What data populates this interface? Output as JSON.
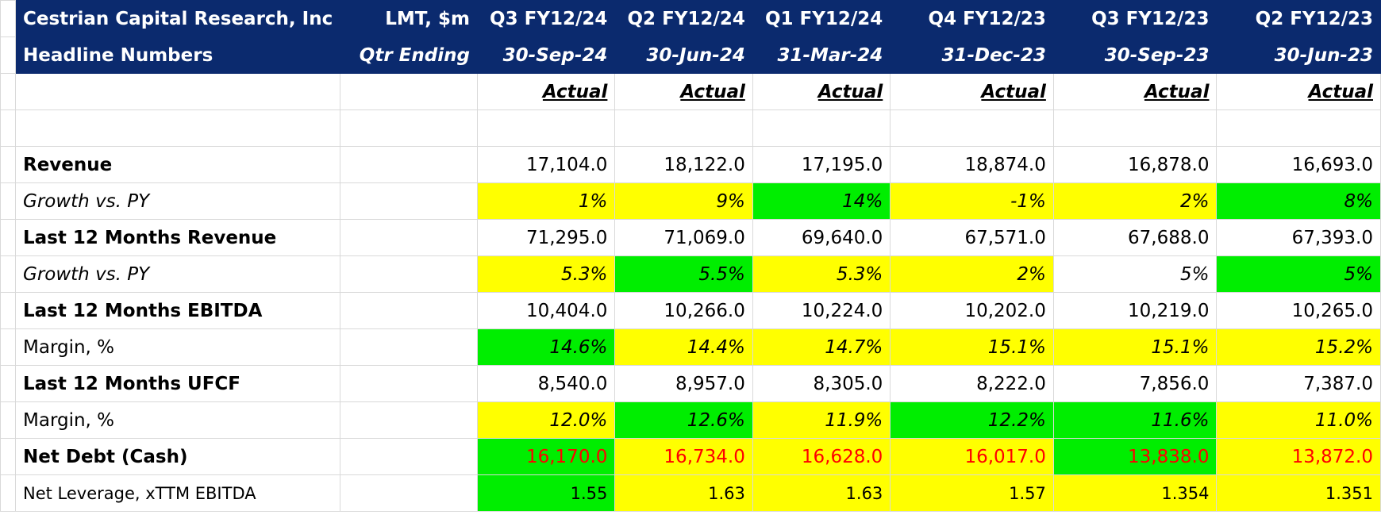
{
  "header": {
    "company": "Cestrian Capital Research, Inc",
    "subtitle": "Headline Numbers",
    "units_label": "LMT, $m",
    "qtr_ending_label": "Qtr Ending",
    "periods": [
      "Q3 FY12/24",
      "Q2 FY12/24",
      "Q1 FY12/24",
      "Q4 FY12/23",
      "Q3 FY12/23",
      "Q2 FY12/23"
    ],
    "dates": [
      "30-Sep-24",
      "30-Jun-24",
      "31-Mar-24",
      "31-Dec-23",
      "30-Sep-23",
      "30-Jun-23"
    ],
    "status": [
      "Actual",
      "Actual",
      "Actual",
      "Actual",
      "Actual",
      "Actual"
    ]
  },
  "rows": {
    "revenue": {
      "label": "Revenue",
      "values": [
        "17,104.0",
        "18,122.0",
        "17,195.0",
        "18,874.0",
        "16,878.0",
        "16,693.0"
      ]
    },
    "revenue_growth": {
      "label": "Growth vs. PY",
      "values": [
        "1%",
        "9%",
        "14%",
        "-1%",
        "2%",
        "8%"
      ],
      "fills": [
        "yellow",
        "yellow",
        "green",
        "yellow",
        "yellow",
        "green"
      ]
    },
    "ltm_revenue": {
      "label": "Last 12 Months Revenue",
      "values": [
        "71,295.0",
        "71,069.0",
        "69,640.0",
        "67,571.0",
        "67,688.0",
        "67,393.0"
      ]
    },
    "ltm_revenue_growth": {
      "label": "Growth vs. PY",
      "values": [
        "5.3%",
        "5.5%",
        "5.3%",
        "2%",
        "5%",
        "5%"
      ],
      "fills": [
        "yellow",
        "green",
        "yellow",
        "yellow",
        "none",
        "green"
      ]
    },
    "ltm_ebitda": {
      "label": "Last 12 Months EBITDA",
      "values": [
        "10,404.0",
        "10,266.0",
        "10,224.0",
        "10,202.0",
        "10,219.0",
        "10,265.0"
      ]
    },
    "ebitda_margin": {
      "label": "Margin, %",
      "values": [
        "14.6%",
        "14.4%",
        "14.7%",
        "15.1%",
        "15.1%",
        "15.2%"
      ],
      "fills": [
        "green",
        "yellow",
        "yellow",
        "yellow",
        "yellow",
        "yellow"
      ]
    },
    "ltm_ufcf": {
      "label": "Last 12 Months UFCF",
      "values": [
        "8,540.0",
        "8,957.0",
        "8,305.0",
        "8,222.0",
        "7,856.0",
        "7,387.0"
      ]
    },
    "ufcf_margin": {
      "label": "Margin, %",
      "values": [
        "12.0%",
        "12.6%",
        "11.9%",
        "12.2%",
        "11.6%",
        "11.0%"
      ],
      "fills": [
        "yellow",
        "green",
        "yellow",
        "green",
        "green",
        "yellow"
      ]
    },
    "net_debt": {
      "label": "Net Debt (Cash)",
      "values": [
        "16,170.0",
        "16,734.0",
        "16,628.0",
        "16,017.0",
        "13,838.0",
        "13,872.0"
      ],
      "fills": [
        "green",
        "yellow",
        "yellow",
        "yellow",
        "green",
        "yellow"
      ],
      "text_color": "#ff0000"
    },
    "net_leverage": {
      "label": "Net Leverage, xTTM EBITDA",
      "values": [
        "1.55",
        "1.63",
        "1.63",
        "1.57",
        "1.354",
        "1.351"
      ],
      "fills": [
        "green",
        "yellow",
        "yellow",
        "yellow",
        "yellow",
        "yellow"
      ]
    }
  },
  "colors": {
    "header_bg": "#0b2a6e",
    "header_text": "#ffffff",
    "fill_yellow": "#ffff00",
    "fill_green": "#00ee00",
    "negative_red": "#ff0000",
    "gridline": "#d9d9d9"
  }
}
